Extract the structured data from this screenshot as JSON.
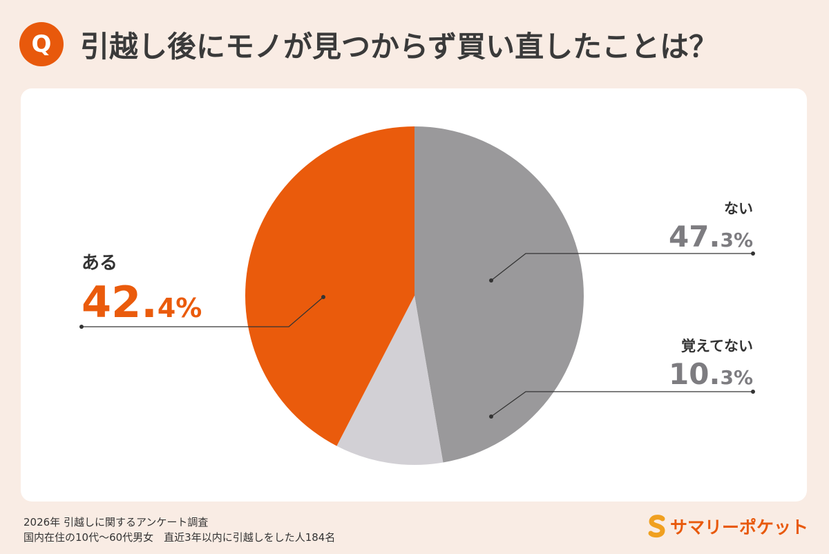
{
  "header": {
    "badge": "Q",
    "title": "引越し後にモノが見つからず買い直したことは？"
  },
  "chart_data": {
    "type": "pie",
    "start": "top",
    "direction": "clockwise",
    "slices": [
      {
        "label": "ない",
        "value": 47.3,
        "display": {
          "int": "47.",
          "dec": "3",
          "unit": "%"
        },
        "color": "#9a999b"
      },
      {
        "label": "覚えてない",
        "value": 10.3,
        "display": {
          "int": "10.",
          "dec": "3",
          "unit": "%"
        },
        "color": "#d2d0d5"
      },
      {
        "label": "ある",
        "value": 42.4,
        "display": {
          "int": "42.",
          "dec": "4",
          "unit": "%"
        },
        "color": "#ea5b0c"
      }
    ]
  },
  "footer": {
    "line1": "2026年  引越しに関するアンケート調査",
    "line2": "国内在住の10代～60代男女　直近3年以内に引越しをした人184名"
  },
  "brand": {
    "name": "サマリーポケット",
    "icon": "s-logo-icon",
    "color": "#e8590c"
  }
}
